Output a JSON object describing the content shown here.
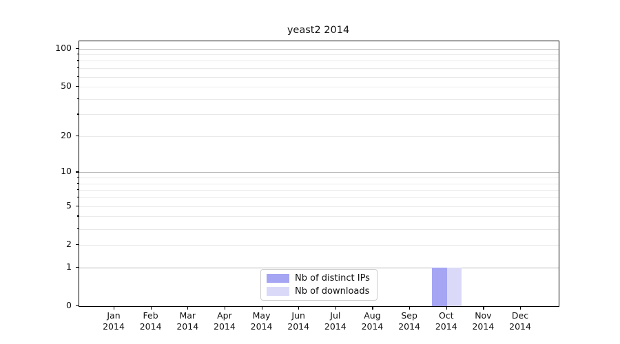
{
  "chart_data": {
    "type": "bar",
    "title": "yeast2 2014",
    "categories": [
      "Jan 2014",
      "Feb 2014",
      "Mar 2014",
      "Apr 2014",
      "May 2014",
      "Jun 2014",
      "Jul 2014",
      "Aug 2014",
      "Sep 2014",
      "Oct 2014",
      "Nov 2014",
      "Dec 2014"
    ],
    "series": [
      {
        "name": "Nb of distinct IPs",
        "color": "#a5a5f3",
        "values": [
          0,
          0,
          0,
          0,
          0,
          0,
          0,
          0,
          0,
          1,
          0,
          0
        ]
      },
      {
        "name": "Nb of downloads",
        "color": "#dadaf8",
        "values": [
          0,
          0,
          0,
          0,
          0,
          0,
          0,
          0,
          0,
          1,
          0,
          0
        ]
      }
    ],
    "xlabel": "",
    "ylabel": "",
    "yscale": "log1p",
    "ylim": [
      0,
      114
    ],
    "ytick_labels": [
      "0",
      "1",
      "2",
      "5",
      "10",
      "20",
      "50",
      "100"
    ],
    "ytick_values": [
      0,
      1,
      2,
      5,
      10,
      20,
      50,
      100
    ],
    "ytick_minor_values": [
      3,
      4,
      6,
      7,
      8,
      9,
      30,
      40,
      60,
      70,
      80,
      90
    ],
    "grid": true,
    "grid_major_values": [
      1,
      10,
      100
    ],
    "grid_minor_values": [
      2,
      3,
      4,
      5,
      6,
      7,
      8,
      9,
      20,
      30,
      40,
      50,
      60,
      70,
      80,
      90
    ],
    "legend_position": "lower center"
  },
  "legend": {
    "items": [
      {
        "label": "Nb of distinct IPs",
        "color": "#a5a5f3"
      },
      {
        "label": "Nb of downloads",
        "color": "#dadaf8"
      }
    ]
  },
  "colors": {
    "axis": "#000000",
    "grid_major": "#b5b5b5",
    "grid_minor": "#e9e9e9",
    "background": "#ffffff",
    "text": "#111111"
  }
}
